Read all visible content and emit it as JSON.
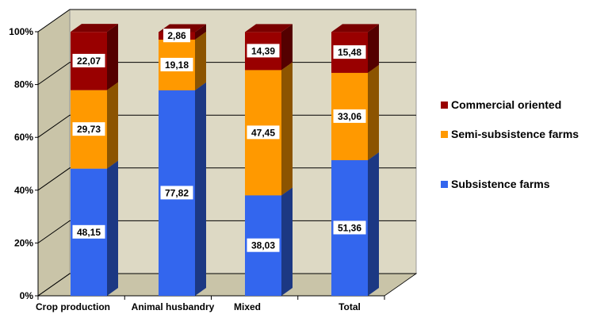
{
  "chart_data": {
    "type": "bar",
    "stacked": true,
    "percent": true,
    "categories": [
      "Crop production",
      "Animal husbandry",
      "Mixed",
      "Total"
    ],
    "series": [
      {
        "name": "Subsistence farms",
        "values": [
          48.15,
          77.82,
          38.03,
          51.36
        ],
        "labels": [
          "48,15",
          "77,82",
          "38,03",
          "51,36"
        ],
        "color": "#3366ee"
      },
      {
        "name": "Semi-subsistence farms",
        "values": [
          29.73,
          19.18,
          47.45,
          33.06
        ],
        "labels": [
          "29,73",
          "19,18",
          "47,45",
          "33,06"
        ],
        "color": "#ff9900"
      },
      {
        "name": "Commercial oriented",
        "values": [
          22.07,
          2.86,
          14.39,
          15.48
        ],
        "labels": [
          "22,07",
          "2,86",
          "14,39",
          "15,48"
        ],
        "color": "#990000"
      }
    ],
    "yticks": [
      "0%",
      "20%",
      "40%",
      "60%",
      "80%",
      "100%"
    ],
    "ylim": [
      0,
      100
    ],
    "grid": true,
    "legend_position": "right",
    "legend_order": [
      "Commercial oriented",
      "Semi-subsistence farms",
      "Subsistence farms"
    ],
    "title": "",
    "xlabel": "",
    "ylabel": ""
  },
  "style": {
    "wall_color": "#ddd9c4",
    "grid_color": "#000000"
  }
}
